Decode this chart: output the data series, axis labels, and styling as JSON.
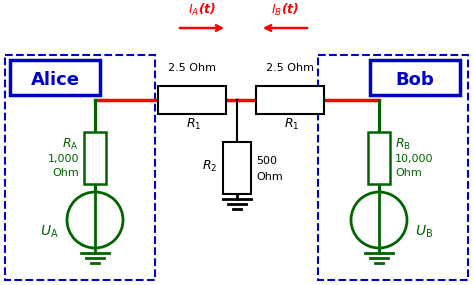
{
  "fig_width": 4.74,
  "fig_height": 2.85,
  "dpi": 100,
  "bg_color": "#ffffff",
  "red": "#ff0000",
  "green": "#006400",
  "blue": "#0000cc",
  "black": "#000000",
  "alice_label": "Alice",
  "bob_label": "Bob",
  "IA_label": "$I_\\mathrm{A}$(t)",
  "IB_label": "$I_\\mathrm{B}$(t)",
  "R1_left_label": "2.5 Ohm",
  "R1_right_label": "2.5 Ohm",
  "R1_sub_left": "$R_1$",
  "R1_sub_right": "$R_1$",
  "R2_label": "$R_2$",
  "RA_label": "$R_\\mathrm{A}$",
  "RB_label": "$R_\\mathrm{B}$",
  "UA_label": "$U_\\mathrm{A}$",
  "UB_label": "$U_\\mathrm{B}$"
}
